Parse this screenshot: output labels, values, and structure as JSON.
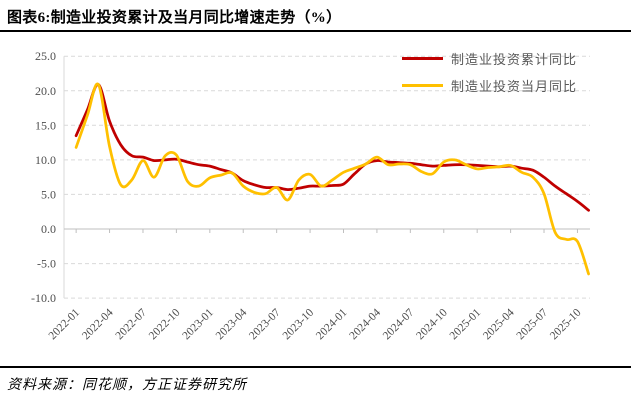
{
  "header": {
    "title": "图表6:制造业投资累计及当月同比增速走势（%）"
  },
  "footer": {
    "source": "资料来源：同花顺，方正证券研究所"
  },
  "colors": {
    "cumulative": "#C00000",
    "monthly": "#FFC000",
    "gridline": "#D9D9D9",
    "axis": "#BFBFBF",
    "tick_label": "#4d4d4d",
    "legend_text": "#595959",
    "rule": "#000000"
  },
  "chart_data": {
    "type": "line",
    "title": "制造业投资累计及当月同比增速走势（%）",
    "xlabel": "",
    "ylabel": "",
    "ylim": [
      -10,
      25
    ],
    "grid": "horizontal-dashed",
    "legend_position": "top-right",
    "y_tick_values": [
      -10,
      -5,
      0,
      5,
      10,
      15,
      20,
      25
    ],
    "y_tick_labels": [
      "-10.0",
      "-5.0",
      "0.0",
      "5.0",
      "10.0",
      "15.0",
      "20.0",
      "25.0"
    ],
    "x_tick_labels": [
      "2022-01",
      "2022-04",
      "2022-07",
      "2022-10",
      "2023-01",
      "2023-04",
      "2023-07",
      "2023-10",
      "2024-01",
      "2024-04",
      "2024-07",
      "2024-10",
      "2025-01",
      "2025-04",
      "2025-07",
      "2025-10"
    ],
    "x": [
      "2021-12",
      "2022-01",
      "2022-02",
      "2022-03",
      "2022-04",
      "2022-05",
      "2022-06",
      "2022-07",
      "2022-08",
      "2022-09",
      "2022-10",
      "2022-11",
      "2022-12",
      "2023-01",
      "2023-02",
      "2023-03",
      "2023-04",
      "2023-05",
      "2023-06",
      "2023-07",
      "2023-08",
      "2023-09",
      "2023-10",
      "2023-11",
      "2023-12",
      "2024-01",
      "2024-02",
      "2024-03",
      "2024-04",
      "2024-05",
      "2024-06",
      "2024-07",
      "2024-08",
      "2024-09",
      "2024-10",
      "2024-11",
      "2024-12",
      "2025-01",
      "2025-02",
      "2025-03",
      "2025-04",
      "2025-05",
      "2025-06",
      "2025-07",
      "2025-08",
      "2025-09",
      "2025-10"
    ],
    "series": [
      {
        "name": "制造业投资累计同比",
        "color": "#C00000",
        "values": [
          13.5,
          17.2,
          20.9,
          15.6,
          12.2,
          10.6,
          10.4,
          9.9,
          10.0,
          10.1,
          9.7,
          9.3,
          9.1,
          8.6,
          8.1,
          7.0,
          6.4,
          6.0,
          6.0,
          5.7,
          5.9,
          6.2,
          6.2,
          6.3,
          6.5,
          8.0,
          9.4,
          9.9,
          9.7,
          9.6,
          9.5,
          9.3,
          9.1,
          9.2,
          9.3,
          9.3,
          9.2,
          9.1,
          9.0,
          9.1,
          8.8,
          8.5,
          7.5,
          6.2,
          5.1,
          4.0,
          2.7
        ]
      },
      {
        "name": "制造业投资当月同比",
        "color": "#FFC000",
        "values": [
          11.8,
          16.4,
          20.9,
          11.9,
          6.4,
          7.1,
          9.9,
          7.5,
          10.6,
          10.7,
          6.9,
          6.2,
          7.4,
          7.8,
          8.1,
          6.2,
          5.3,
          5.1,
          6.0,
          4.2,
          7.1,
          7.9,
          6.2,
          7.1,
          8.2,
          8.8,
          9.4,
          10.4,
          9.3,
          9.4,
          9.3,
          8.3,
          8.0,
          9.7,
          10.0,
          9.3,
          8.7,
          8.9,
          9.0,
          9.2,
          8.2,
          7.5,
          5.1,
          -0.5,
          -1.5,
          -1.8,
          -6.5
        ]
      }
    ]
  }
}
